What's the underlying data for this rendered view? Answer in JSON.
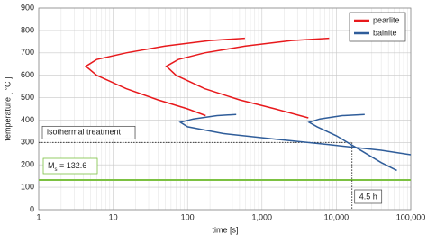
{
  "chart_data": {
    "type": "line",
    "x_scale": "log",
    "xlabel": "time [s]",
    "ylabel": "temperature [ °C ]",
    "xlim": [
      1,
      100000
    ],
    "xticks": [
      1,
      10,
      100,
      {
        "value": 1000,
        "label": "1,000"
      },
      {
        "value": 10000,
        "label": "10,000"
      },
      {
        "value": 100000,
        "label": "100,000"
      }
    ],
    "xminor": [
      2,
      3,
      4,
      5,
      6,
      7,
      8,
      9,
      20,
      30,
      40,
      50,
      60,
      70,
      80,
      90,
      200,
      300,
      400,
      500,
      600,
      700,
      800,
      900,
      2000,
      3000,
      4000,
      5000,
      6000,
      7000,
      8000,
      9000,
      20000,
      30000,
      40000,
      50000,
      60000,
      70000,
      80000,
      90000
    ],
    "ylim": [
      0,
      900
    ],
    "yticks": [
      0,
      100,
      200,
      300,
      400,
      500,
      600,
      700,
      800,
      900
    ],
    "grid": true,
    "legend": "upper right",
    "series": [
      {
        "name": "pearlite",
        "color": "#e8191c",
        "lines": [
          {
            "x": [
              590,
              200,
              50,
              15,
              6,
              4.3,
              6,
              15,
              40,
              100,
              175
            ],
            "values": [
              765,
              755,
              730,
              700,
              670,
              640,
              600,
              540,
              490,
              450,
              420
            ]
          },
          {
            "x": [
              8000,
              2500,
              600,
              170,
              75,
              52,
              70,
              170,
              500,
              1500,
              4200
            ],
            "values": [
              765,
              755,
              730,
              700,
              670,
              640,
              600,
              540,
              490,
              450,
              410
            ]
          }
        ]
      },
      {
        "name": "bainite",
        "color": "#2f5d9a",
        "lines": [
          {
            "x": [
              450,
              250,
              120,
              80,
              100,
              300,
              1500,
              8000,
              40000,
              100000
            ],
            "values": [
              425,
              420,
              405,
              390,
              370,
              340,
              315,
              290,
              265,
              245
            ]
          },
          {
            "x": [
              24000,
              12000,
              6000,
              4300,
              5500,
              10000,
              20000,
              40000,
              65000
            ],
            "values": [
              425,
              420,
              405,
              390,
              370,
              330,
              270,
              210,
              175
            ]
          }
        ]
      }
    ],
    "ms_line": {
      "symbol": "M",
      "subscript": "s",
      "text": " = 132.6",
      "value": 132.6,
      "color": "#7cc142"
    },
    "isothermal": {
      "label": "isothermal treatment",
      "temperature": 300,
      "time": 16200,
      "time_label": "4.5 h"
    }
  }
}
